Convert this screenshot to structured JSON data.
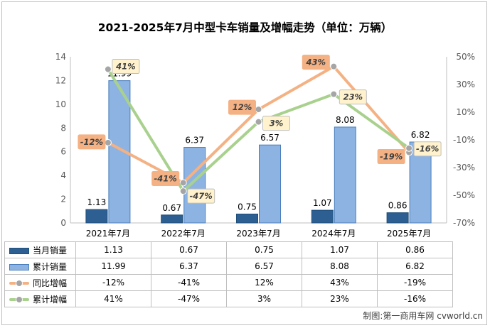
{
  "colors": {
    "bar_monthly": "#2e5f93",
    "bar_cumulative": "#8db3e2",
    "line_yoy": "#f4b183",
    "line_cum_growth": "#a9d18e",
    "marker": "#a5a5a5",
    "label_box_bg": "#fff2cc",
    "label_box_orange": "#f4b183"
  },
  "chart_data": {
    "type": "bar",
    "title": "2021-2025年7月中型卡车销量及增幅走势（单位：万辆）",
    "categories": [
      "2021年7月",
      "2022年7月",
      "2023年7月",
      "2024年7月",
      "2025年7月"
    ],
    "series": [
      {
        "name": "当月销量",
        "type": "bar",
        "axis": "left",
        "values": [
          1.13,
          0.67,
          0.75,
          1.07,
          0.86
        ],
        "labels": [
          "1.13",
          "0.67",
          "0.75",
          "1.07",
          "0.86"
        ]
      },
      {
        "name": "累计销量",
        "type": "bar",
        "axis": "left",
        "values": [
          11.99,
          6.37,
          6.57,
          8.08,
          6.82
        ],
        "labels": [
          "11.99",
          "6.37",
          "6.57",
          "8.08",
          "6.82"
        ]
      },
      {
        "name": "同比增幅",
        "type": "line",
        "axis": "right",
        "values": [
          -12,
          -41,
          12,
          43,
          -19
        ],
        "labels": [
          "-12%",
          "-41%",
          "12%",
          "43%",
          "-19%"
        ]
      },
      {
        "name": "累计增幅",
        "type": "line",
        "axis": "right",
        "values": [
          41,
          -47,
          3,
          23,
          -16
        ],
        "labels": [
          "41%",
          "-47%",
          "3%",
          "23%",
          "-16%"
        ]
      }
    ],
    "y_left": {
      "min": 0,
      "max": 14,
      "ticks": [
        "0",
        "2",
        "4",
        "6",
        "8",
        "10",
        "12",
        "14"
      ]
    },
    "y_right": {
      "min": -70,
      "max": 50,
      "ticks": [
        "-70%",
        "-50%",
        "-30%",
        "-10%",
        "10%",
        "30%",
        "50%"
      ]
    },
    "grid": false,
    "legend": "data-table-below"
  },
  "credit": "制图:第一商用车网 cvworld.cn"
}
